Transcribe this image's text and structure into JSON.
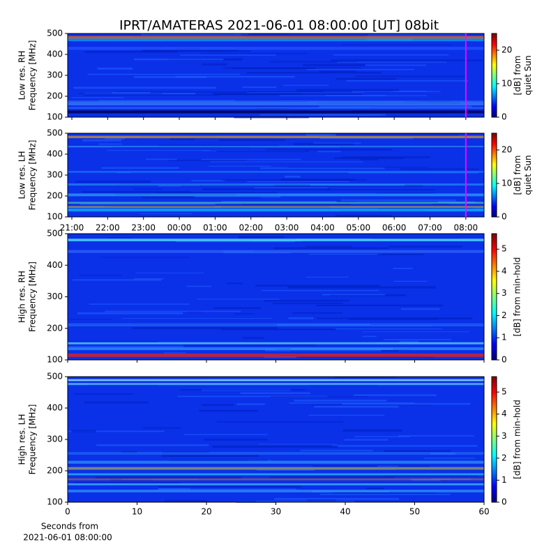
{
  "chart_data": [
    {
      "type": "heatmap",
      "title": "IPRT/AMATERAS 2021-06-01 08:00:00 [UT]   08bit",
      "ylabel": [
        "Low res. RH",
        "Frequency [MHz]"
      ],
      "ylim": [
        100,
        500
      ],
      "yticks": [
        100,
        200,
        300,
        400,
        500
      ],
      "colorbar_label": [
        "[dB] from",
        "quiet Sun"
      ],
      "clim": [
        0,
        25
      ],
      "cticks": [
        0,
        10,
        20
      ]
    },
    {
      "type": "heatmap",
      "ylabel": [
        "Low res. LH",
        "Frequency [MHz]"
      ],
      "ylim": [
        100,
        500
      ],
      "yticks": [
        100,
        200,
        300,
        400,
        500
      ],
      "colorbar_label": [
        "[dB] from",
        "quiet Sun"
      ],
      "clim": [
        0,
        25
      ],
      "cticks": [
        0,
        10,
        20
      ],
      "xticks": [
        "21:00",
        "22:00",
        "23:00",
        "00:00",
        "01:00",
        "02:00",
        "03:00",
        "04:00",
        "05:00",
        "06:00",
        "07:00",
        "08:00"
      ]
    },
    {
      "type": "heatmap",
      "ylabel": [
        "High res. RH",
        "Frequency [MHz]"
      ],
      "ylim": [
        100,
        500
      ],
      "yticks": [
        100,
        200,
        300,
        400,
        500
      ],
      "colorbar_label": [
        "[dB] from min-hold"
      ],
      "clim": [
        0,
        5.7
      ],
      "cticks": [
        0,
        1,
        2,
        3,
        4,
        5
      ]
    },
    {
      "type": "heatmap",
      "ylabel": [
        "High res. LH",
        "Frequency [MHz]"
      ],
      "ylim": [
        100,
        500
      ],
      "yticks": [
        100,
        200,
        300,
        400,
        500
      ],
      "colorbar_label": [
        "[dB] from min-hold"
      ],
      "clim": [
        0,
        5.7
      ],
      "cticks": [
        0,
        1,
        2,
        3,
        4,
        5
      ],
      "xlim": [
        0,
        60
      ],
      "xticks": [
        0,
        10,
        20,
        30,
        40,
        50,
        60
      ],
      "xlabel": [
        "Seconds from",
        "2021-06-01 08:00:00"
      ]
    }
  ]
}
